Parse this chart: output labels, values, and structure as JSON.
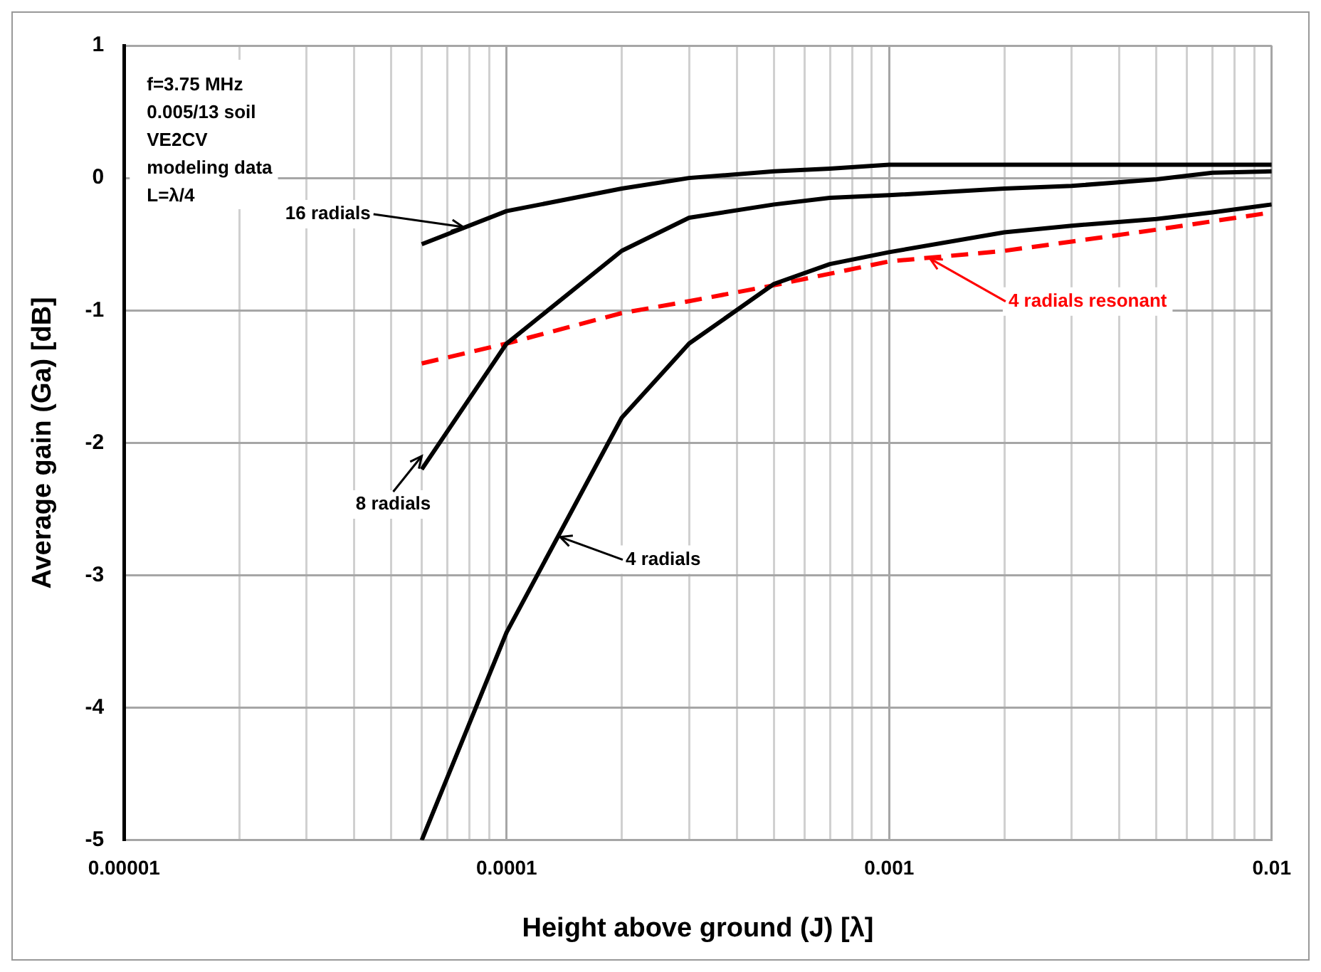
{
  "chart_data": {
    "type": "line",
    "xlabel": "Height above ground (J) [λ]",
    "ylabel": "Average gain (Ga) [dB]",
    "log": "x",
    "xlim": [
      1e-05,
      0.01
    ],
    "ylim": [
      -5,
      1
    ],
    "xticks": [
      {
        "value": 1e-05,
        "label": "0.00001"
      },
      {
        "value": 2e-05,
        "label": null
      },
      {
        "value": 3e-05,
        "label": null
      },
      {
        "value": 4e-05,
        "label": null
      },
      {
        "value": 5e-05,
        "label": null
      },
      {
        "value": 6e-05,
        "label": null
      },
      {
        "value": 7e-05,
        "label": null
      },
      {
        "value": 8e-05,
        "label": null
      },
      {
        "value": 9e-05,
        "label": null
      },
      0.0001,
      {
        "value": 0.0002,
        "label": null
      },
      {
        "value": 0.0003,
        "label": null
      },
      {
        "value": 0.0004,
        "label": null
      },
      {
        "value": 0.0005,
        "label": null
      },
      {
        "value": 0.0006,
        "label": null
      },
      {
        "value": 0.0007,
        "label": null
      },
      {
        "value": 0.0008,
        "label": null
      },
      {
        "value": 0.0009,
        "label": null
      },
      0.001,
      {
        "value": 0.002,
        "label": null
      },
      {
        "value": 0.003,
        "label": null
      },
      {
        "value": 0.004,
        "label": null
      },
      {
        "value": 0.005,
        "label": null
      },
      {
        "value": 0.006,
        "label": null
      },
      {
        "value": 0.007,
        "label": null
      },
      {
        "value": 0.008,
        "label": null
      },
      {
        "value": 0.009,
        "label": null
      },
      0.01
    ],
    "yticks": [
      -5,
      -4,
      -3,
      -2,
      -1,
      0,
      1
    ],
    "grid": true,
    "legend": false,
    "marker": "none",
    "series": [
      {
        "color": "#000000",
        "x": [
          6e-05,
          0.0001,
          0.0002,
          0.0003,
          0.0005,
          0.0007,
          0.001,
          0.002,
          0.003,
          0.005,
          0.007,
          0.01
        ],
        "values": [
          -0.5,
          -0.25,
          -0.08,
          0,
          0.05,
          0.07,
          0.1,
          0.1,
          0.1,
          0.1,
          0.1,
          0.1
        ]
      },
      {
        "color": "#000000",
        "x": [
          6e-05,
          0.0001,
          0.0002,
          0.0003,
          0.0005,
          0.0007,
          0.001,
          0.002,
          0.003,
          0.005,
          0.007,
          0.01
        ],
        "values": [
          -2.2,
          -1.25,
          -0.55,
          -0.3,
          -0.2,
          -0.15,
          -0.13,
          -0.08,
          -0.06,
          -0.01,
          0.04,
          0.05
        ]
      },
      {
        "color": "#000000",
        "x": [
          6e-05,
          0.0001,
          0.0002,
          0.0003,
          0.0005,
          0.0007,
          0.001,
          0.002,
          0.003,
          0.005,
          0.007,
          0.01
        ],
        "values": [
          -5,
          -3.43,
          -1.81,
          -1.25,
          -0.8,
          -0.65,
          -0.56,
          -0.41,
          -0.36,
          -0.31,
          -0.26,
          -0.2
        ]
      },
      {
        "color": "#ff0000",
        "line_style": "dashed",
        "x": [
          6e-05,
          0.0001,
          0.0002,
          0.0003,
          0.0005,
          0.001,
          0.002,
          0.003,
          0.005,
          0.01
        ],
        "values": [
          -1.4,
          -1.25,
          -1.02,
          -0.93,
          -0.81,
          -0.63,
          -0.55,
          -0.48,
          -0.39,
          -0.26
        ]
      }
    ],
    "annotations": [
      "f=3.75 MHz",
      "0.005/13 soil",
      "VE2CV",
      "modeling data",
      "L=λ/4",
      {
        "text": "16 radials",
        "x": 7.7e-05,
        "y": -0.37
      },
      {
        "text": "8 radials",
        "x": 6e-05,
        "y": -2.1
      },
      {
        "text": "4 radials",
        "x": 0.000138,
        "y": -2.71
      },
      {
        "text": "4 radials resonant",
        "x": 0.00128,
        "y": -0.61
      }
    ]
  }
}
